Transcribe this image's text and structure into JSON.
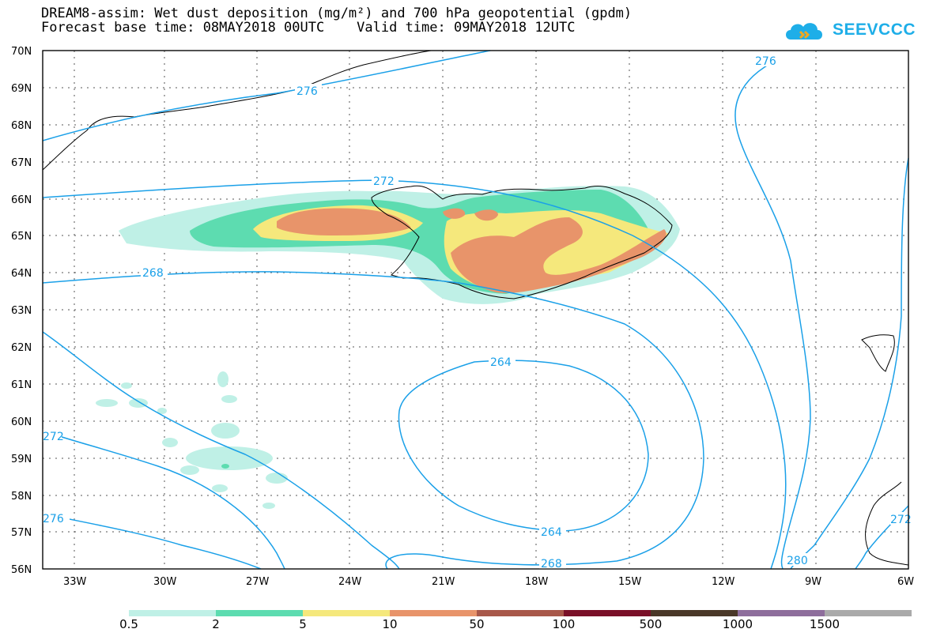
{
  "title": {
    "line1": "DREAM8-assim: Wet dust deposition (mg/m²) and 700 hPa geopotential (gpdm)",
    "line2": "Forecast base time: 08MAY2018 00UTC    Valid time: 09MAY2018 12UTC"
  },
  "logo": {
    "text": "SEEVCCC",
    "icon": "cloud-logo-icon",
    "color": "#1eaee8"
  },
  "map": {
    "lat_labels": [
      "70N",
      "69N",
      "68N",
      "67N",
      "66N",
      "65N",
      "64N",
      "63N",
      "62N",
      "61N",
      "60N",
      "59N",
      "58N",
      "57N",
      "56N"
    ],
    "lon_labels": [
      "33W",
      "30W",
      "27W",
      "24W",
      "21W",
      "18W",
      "15W",
      "12W",
      "9W",
      "6W"
    ],
    "contour_color": "#1aa0e8",
    "contour_labels": [
      "276",
      "272",
      "268",
      "264",
      "264",
      "268",
      "276",
      "272",
      "276",
      "280",
      "272"
    ]
  },
  "colorbar": {
    "labels": [
      "0.5",
      "2",
      "5",
      "10",
      "50",
      "100",
      "500",
      "1000",
      "1500"
    ],
    "colors": [
      "#bff0e6",
      "#5ddcb0",
      "#f5e87c",
      "#e8946a",
      "#a8584a",
      "#7a1028",
      "#4a3828",
      "#8e6e9c",
      "#aaaaaa"
    ]
  }
}
